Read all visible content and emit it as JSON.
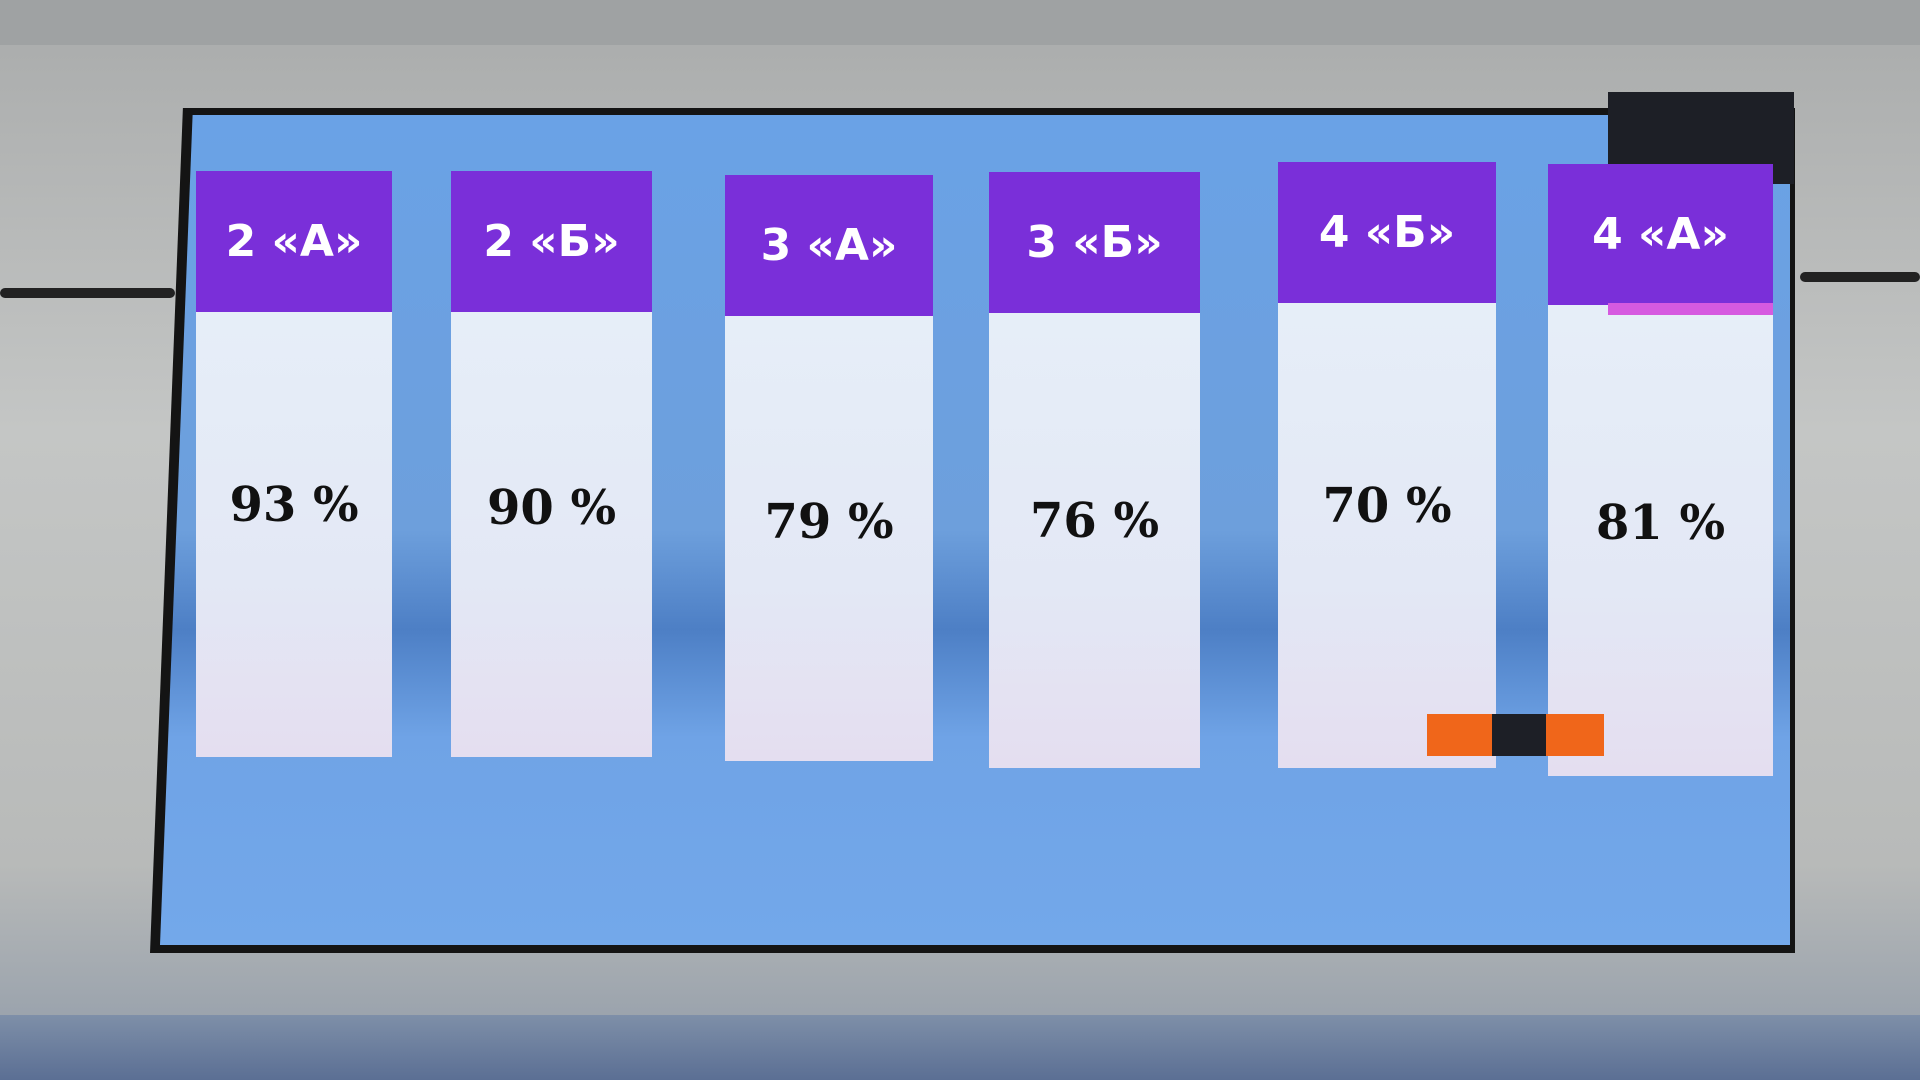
{
  "slide": {
    "classes": [
      {
        "label": "2 «А»",
        "percent": "93 %"
      },
      {
        "label": "2 «Б»",
        "percent": "90 %"
      },
      {
        "label": "3 «А»",
        "percent": "79 %"
      },
      {
        "label": "3 «Б»",
        "percent": "76 %"
      },
      {
        "label": "4 «Б»",
        "percent": "70 %"
      },
      {
        "label": "4 «А»",
        "percent": "81 %"
      }
    ]
  },
  "colors": {
    "header": "#7a2fd9",
    "screen": "#6aa2e6",
    "glitch_orange": "#f0661a"
  }
}
